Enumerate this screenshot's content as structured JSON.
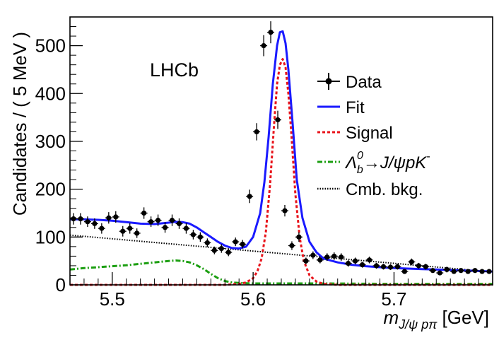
{
  "chart_data": {
    "type": "scatter",
    "title": "",
    "annotation": "LHCb",
    "xlabel": {
      "prefix": "m",
      "sub": "J/ψ pπ",
      "suffix": " [GeV]"
    },
    "ylabel": "Candidates / ( 5 MeV )",
    "xlim": [
      5.47,
      5.77
    ],
    "ylim": [
      0,
      560
    ],
    "xticks": [
      5.5,
      5.6,
      5.7
    ],
    "xtick_labels": [
      "5.5",
      "5.6",
      "5.7"
    ],
    "yticks": [
      0,
      100,
      200,
      300,
      400,
      500
    ],
    "ytick_labels": [
      "0",
      "100",
      "200",
      "300",
      "400",
      "500"
    ],
    "legend": {
      "position": "right",
      "entries": [
        {
          "key": "data",
          "label": "Data",
          "style": "marker",
          "color": "#000000"
        },
        {
          "key": "fit",
          "label": "Fit",
          "style": "solid",
          "color": "#1a1aff"
        },
        {
          "key": "signal",
          "label": "Signal",
          "style": "dashed",
          "color": "#e8141b"
        },
        {
          "key": "lb",
          "label_main": "Λ",
          "label_sub": "b",
          "label_sup": "0",
          "label_rest": "→J/ψpK",
          "label_sup2": "-",
          "style": "dashdot",
          "color": "#1b9e10"
        },
        {
          "key": "cmb",
          "label": "Cmb. bkg.",
          "style": "dotted",
          "color": "#000000"
        }
      ]
    },
    "series": [
      {
        "name": "Data",
        "x": [
          5.4725,
          5.4775,
          5.4825,
          5.4875,
          5.4925,
          5.4975,
          5.5025,
          5.5075,
          5.5125,
          5.5175,
          5.5225,
          5.5275,
          5.5325,
          5.5375,
          5.5425,
          5.5475,
          5.5525,
          5.5575,
          5.5625,
          5.5675,
          5.5725,
          5.5775,
          5.5825,
          5.5875,
          5.5925,
          5.5975,
          5.6025,
          5.6075,
          5.6125,
          5.6175,
          5.6225,
          5.6275,
          5.6325,
          5.6375,
          5.6425,
          5.6475,
          5.6525,
          5.6575,
          5.6625,
          5.6675,
          5.6725,
          5.6775,
          5.6825,
          5.6875,
          5.6925,
          5.6975,
          5.7025,
          5.7075,
          5.7125,
          5.7175,
          5.7225,
          5.7275,
          5.7325,
          5.7375,
          5.7425,
          5.7475,
          5.7525,
          5.7575,
          5.7625,
          5.7675
        ],
        "y": [
          138,
          138,
          132,
          128,
          118,
          140,
          142,
          112,
          118,
          108,
          150,
          132,
          135,
          120,
          135,
          128,
          118,
          105,
          100,
          88,
          72,
          76,
          68,
          90,
          85,
          185,
          320,
          500,
          528,
          345,
          155,
          82,
          100,
          50,
          62,
          52,
          58,
          60,
          58,
          45,
          50,
          42,
          52,
          40,
          38,
          37,
          38,
          28,
          48,
          40,
          38,
          30,
          25,
          32,
          28,
          30,
          28,
          30,
          28,
          28
        ],
        "errors": [
          12,
          12,
          11,
          11,
          11,
          12,
          12,
          11,
          11,
          10,
          12,
          11,
          12,
          11,
          12,
          11,
          11,
          10,
          10,
          9,
          8,
          9,
          8,
          9,
          9,
          14,
          18,
          22,
          23,
          19,
          12,
          9,
          10,
          7,
          8,
          7,
          8,
          8,
          8,
          7,
          7,
          6,
          7,
          6,
          6,
          6,
          6,
          5,
          7,
          6,
          6,
          5,
          5,
          6,
          5,
          5,
          5,
          5,
          5,
          5
        ]
      },
      {
        "name": "Fit",
        "x": [
          5.47,
          5.48,
          5.49,
          5.5,
          5.51,
          5.52,
          5.53,
          5.54,
          5.545,
          5.55,
          5.555,
          5.56,
          5.565,
          5.57,
          5.575,
          5.58,
          5.585,
          5.59,
          5.595,
          5.6,
          5.605,
          5.608,
          5.611,
          5.614,
          5.617,
          5.619,
          5.621,
          5.623,
          5.625,
          5.628,
          5.631,
          5.635,
          5.64,
          5.645,
          5.65,
          5.66,
          5.67,
          5.68,
          5.69,
          5.7,
          5.71,
          5.72,
          5.73,
          5.74,
          5.75,
          5.76,
          5.77
        ],
        "y": [
          137,
          137,
          136,
          134,
          131,
          128,
          127,
          130,
          132,
          131,
          128,
          120,
          110,
          100,
          90,
          82,
          77,
          76,
          80,
          100,
          150,
          215,
          310,
          420,
          500,
          528,
          530,
          505,
          450,
          340,
          220,
          140,
          90,
          68,
          55,
          47,
          42,
          39,
          37,
          35,
          34,
          33,
          32,
          31,
          30,
          29,
          28
        ]
      },
      {
        "name": "Signal",
        "x": [
          5.47,
          5.58,
          5.59,
          5.595,
          5.6,
          5.603,
          5.606,
          5.609,
          5.612,
          5.615,
          5.617,
          5.619,
          5.621,
          5.623,
          5.625,
          5.627,
          5.63,
          5.633,
          5.636,
          5.64,
          5.645,
          5.65,
          5.66,
          5.77
        ],
        "y": [
          0,
          0,
          2,
          5,
          14,
          28,
          55,
          110,
          210,
          340,
          420,
          460,
          472,
          455,
          400,
          320,
          190,
          100,
          50,
          20,
          7,
          2,
          0,
          0
        ]
      },
      {
        "name": "Lambda_b0 -> J/psi p K-",
        "x": [
          5.47,
          5.48,
          5.49,
          5.5,
          5.51,
          5.52,
          5.53,
          5.54,
          5.545,
          5.55,
          5.555,
          5.56,
          5.565,
          5.57,
          5.575,
          5.58,
          5.585,
          5.59,
          5.6,
          5.62,
          5.65,
          5.7,
          5.77
        ],
        "y": [
          32,
          35,
          37,
          39,
          41,
          44,
          47,
          50,
          51,
          50,
          47,
          41,
          33,
          23,
          14,
          8,
          5,
          4,
          3,
          3,
          3,
          2,
          2
        ]
      },
      {
        "name": "Cmb. bkg.",
        "x": [
          5.47,
          5.77
        ],
        "y": [
          104,
          27
        ]
      }
    ]
  }
}
